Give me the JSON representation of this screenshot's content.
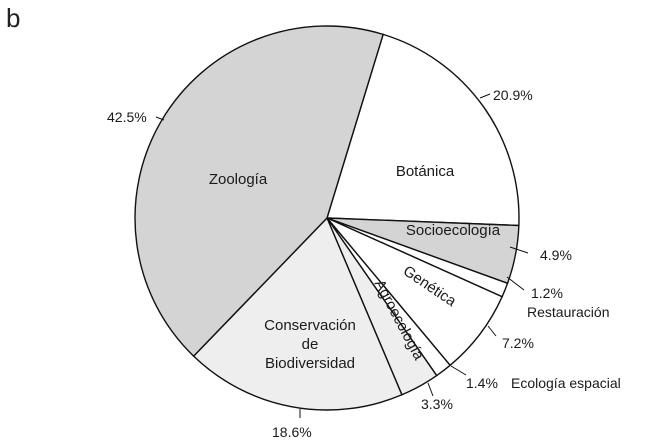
{
  "panel_label": "b",
  "colors": {
    "gray": "#d4d4d4",
    "white": "#ffffff",
    "light": "#eeeeee"
  },
  "chart_data": {
    "type": "pie",
    "slices": [
      {
        "label": "Botánica",
        "value": 20.9,
        "value_label": "20.9%",
        "color": "#ffffff"
      },
      {
        "label": "Socioecología",
        "value": 4.9,
        "value_label": "4.9%",
        "color": "#d4d4d4"
      },
      {
        "label": "Restauración",
        "value": 1.2,
        "value_label": "1.2%",
        "color": "#ffffff"
      },
      {
        "label": "Genética",
        "value": 7.2,
        "value_label": "7.2%",
        "color": "#ffffff"
      },
      {
        "label": "Ecología espacial",
        "value": 1.4,
        "value_label": "1.4%",
        "color": "#ffffff"
      },
      {
        "label": "Agroecología",
        "value": 3.3,
        "value_label": "3.3%",
        "color": "#eeeeee"
      },
      {
        "label": "Conservación de Biodiversidad",
        "label_lines": [
          "Conservación",
          "de",
          "Biodiversidad"
        ],
        "value": 18.6,
        "value_label": "18.6%",
        "color": "#eeeeee"
      },
      {
        "label": "Zoología",
        "value": 42.5,
        "value_label": "42.5%",
        "color": "#d4d4d4"
      }
    ]
  }
}
